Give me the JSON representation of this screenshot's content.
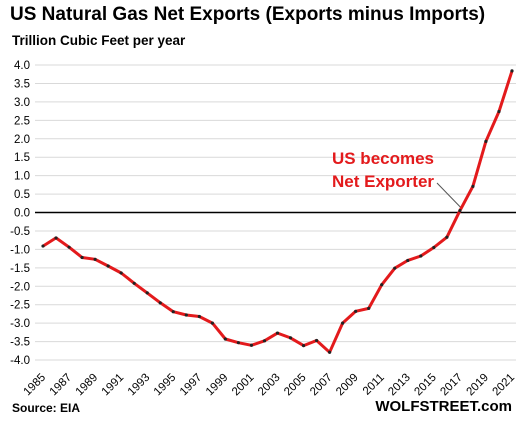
{
  "header": {
    "title": "US Natural Gas Net Exports (Exports minus Imports)",
    "subtitle": "Trillion Cubic Feet per year"
  },
  "footer": {
    "source": "Source: EIA",
    "brand": "WOLFSTREET.com"
  },
  "colors": {
    "line": "#e31a1c",
    "markers": "#222222",
    "grid": "#d9d9d9",
    "zero_line": "#000000",
    "annotation": "#e31a1c"
  },
  "chart_data": {
    "type": "line",
    "title": "US Natural Gas Net Exports (Exports minus Imports)",
    "subtitle": "Trillion Cubic Feet per year",
    "xlabel": "",
    "ylabel": "Trillion Cubic Feet per year",
    "ylim": [
      -4.0,
      4.0
    ],
    "y_ticks": [
      "4.0",
      "3.5",
      "3.0",
      "2.5",
      "2.0",
      "1.5",
      "1.0",
      "0.5",
      "0.0",
      "-0.5",
      "-1.0",
      "-1.5",
      "-2.0",
      "-2.5",
      "-3.0",
      "-3.5",
      "-4.0"
    ],
    "x_ticks": [
      "1985",
      "1987",
      "1989",
      "1991",
      "1993",
      "1995",
      "1997",
      "1999",
      "2001",
      "2003",
      "2005",
      "2007",
      "2009",
      "2011",
      "2013",
      "2015",
      "2017",
      "2019",
      "2021"
    ],
    "grid": true,
    "x": [
      1985,
      1986,
      1987,
      1988,
      1989,
      1990,
      1991,
      1992,
      1993,
      1994,
      1995,
      1996,
      1997,
      1998,
      1999,
      2000,
      2001,
      2002,
      2003,
      2004,
      2005,
      2006,
      2007,
      2008,
      2009,
      2010,
      2011,
      2012,
      2013,
      2014,
      2015,
      2016,
      2017,
      2018,
      2019,
      2020,
      2021
    ],
    "values": [
      -0.91,
      -0.69,
      -0.94,
      -1.22,
      -1.27,
      -1.45,
      -1.64,
      -1.92,
      -2.18,
      -2.45,
      -2.69,
      -2.78,
      -2.82,
      -3.0,
      -3.43,
      -3.53,
      -3.6,
      -3.48,
      -3.27,
      -3.4,
      -3.61,
      -3.47,
      -3.79,
      -3.0,
      -2.68,
      -2.6,
      -1.96,
      -1.51,
      -1.3,
      -1.18,
      -0.95,
      -0.67,
      0.05,
      0.71,
      1.93,
      2.74,
      3.84
    ],
    "annotation": {
      "lines": [
        "US becomes",
        "Net Exporter"
      ],
      "x": 2017,
      "y": 0.05
    }
  }
}
